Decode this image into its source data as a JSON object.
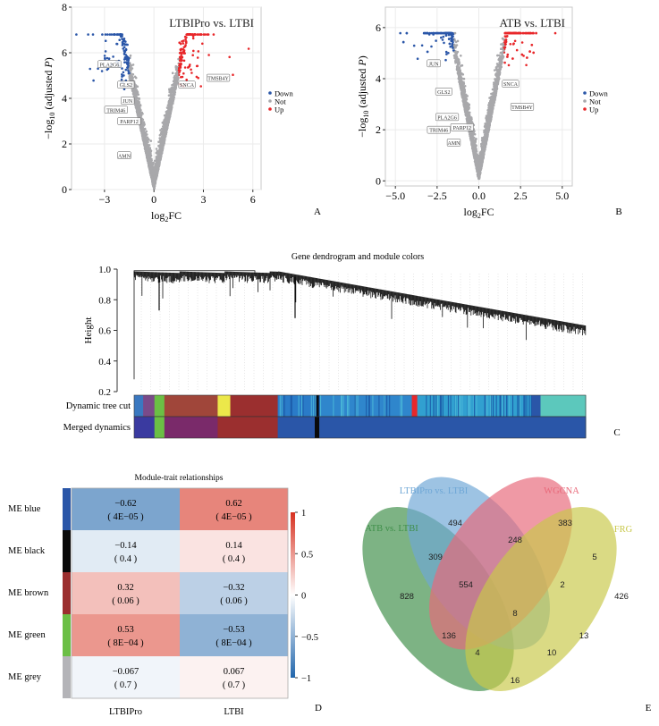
{
  "chart_data": [
    {
      "panel": "A",
      "type": "scatter",
      "title": "LTBIPro vs. LTBI",
      "xlabel": "log2FC",
      "ylabel": "-log10 (adjusted P)",
      "xlim": [
        -5,
        6.5
      ],
      "ylim": [
        0,
        8
      ],
      "xticks": [
        "-3",
        "0",
        "3",
        "6"
      ],
      "xtick_values": [
        -3,
        0,
        3,
        6
      ],
      "yticks": [
        "0",
        "2",
        "4",
        "6",
        "8"
      ],
      "ytick_values": [
        0,
        2,
        4,
        6,
        8
      ],
      "grid": true,
      "legend": {
        "position": "right",
        "entries": [
          {
            "name": "Down",
            "color": "#2a56a8"
          },
          {
            "name": "Not",
            "color": "#a8a8ab"
          },
          {
            "name": "Up",
            "color": "#e8272a"
          }
        ]
      },
      "fc_threshold": 1.5,
      "labels": [
        {
          "text": "PLA2G6",
          "x": -2.7,
          "y": 5.5
        },
        {
          "text": "GLS2",
          "x": -1.7,
          "y": 4.6
        },
        {
          "text": "JUN",
          "x": -1.6,
          "y": 3.9
        },
        {
          "text": "TRIM46",
          "x": -2.3,
          "y": 3.5
        },
        {
          "text": "PARP12",
          "x": -1.5,
          "y": 3.0
        },
        {
          "text": "AMN",
          "x": -1.8,
          "y": 1.5
        },
        {
          "text": "TMSB4Y",
          "x": 3.9,
          "y": 4.9
        },
        {
          "text": "SNCA",
          "x": 2.0,
          "y": 4.6
        }
      ],
      "points_description": "Volcano: thousands of genes; Down (log2FC < -1.5, blue), Not (grey, |log2FC| < 1.5), Up (log2FC > 1.5, red); max -log10 adjusted P about 7.0"
    },
    {
      "panel": "B",
      "type": "scatter",
      "title": "ATB vs. LTBI",
      "xlabel": "log2FC",
      "ylabel": "-log10 (adjusted P)",
      "xlim": [
        -5.6,
        5.6
      ],
      "ylim": [
        -0.2,
        6.8
      ],
      "xticks": [
        "-5.0",
        "-2.5",
        "0.0",
        "2.5",
        "5.0"
      ],
      "xtick_values": [
        -5,
        -2.5,
        0,
        2.5,
        5
      ],
      "yticks": [
        "0",
        "2",
        "4",
        "6"
      ],
      "ytick_values": [
        0,
        2,
        4,
        6
      ],
      "grid": true,
      "legend": {
        "position": "right",
        "entries": [
          {
            "name": "Down",
            "color": "#2a56a8"
          },
          {
            "name": "Not",
            "color": "#a8a8ab"
          },
          {
            "name": "Up",
            "color": "#e8272a"
          }
        ]
      },
      "fc_threshold": 1.5,
      "labels": [
        {
          "text": "JUN",
          "x": -2.7,
          "y": 4.6
        },
        {
          "text": "GLS2",
          "x": -2.1,
          "y": 3.5
        },
        {
          "text": "PLA2G6",
          "x": -1.9,
          "y": 2.5
        },
        {
          "text": "PARP12",
          "x": -1.0,
          "y": 2.1
        },
        {
          "text": "TRIM46",
          "x": -2.4,
          "y": 2.0
        },
        {
          "text": "AMN",
          "x": -1.5,
          "y": 1.5
        },
        {
          "text": "SNCA",
          "x": 1.9,
          "y": 3.8
        },
        {
          "text": "TMSB4Y",
          "x": 2.6,
          "y": 2.9
        }
      ],
      "points_description": "Volcano: Down (blue), Not (grey), Up (red); max -log10 adjusted P about 6.5"
    },
    {
      "panel": "C",
      "type": "dendrogram",
      "title": "Gene dendrogram and module colors",
      "ylabel": "Height",
      "ylim": [
        0.2,
        1.0
      ],
      "yticks": [
        "0.2",
        "0.4",
        "0.6",
        "0.8",
        "1.0"
      ],
      "ytick_values": [
        0.2,
        0.4,
        0.6,
        0.8,
        1.0
      ],
      "color_rows": [
        {
          "label": "Dynamic tree cut",
          "segments": [
            {
              "color": "#3a78c0",
              "from": 0.0,
              "to": 0.02
            },
            {
              "color": "#7a4a8a",
              "from": 0.02,
              "to": 0.045
            },
            {
              "color": "#6bbf45",
              "from": 0.045,
              "to": 0.067
            },
            {
              "color": "#a0463a",
              "from": 0.067,
              "to": 0.185
            },
            {
              "color": "#ece84a",
              "from": 0.185,
              "to": 0.213
            },
            {
              "color": "#9b2f2f",
              "from": 0.213,
              "to": 0.318
            },
            {
              "color": "#2a7bc8",
              "from": 0.318,
              "to": 0.4
            },
            {
              "color": "#0a0a0a",
              "from": 0.4,
              "to": 0.41
            },
            {
              "color": "#2f86cc",
              "from": 0.41,
              "to": 0.615
            },
            {
              "color": "#e8272a",
              "from": 0.615,
              "to": 0.627
            },
            {
              "color": "#31a0d0",
              "from": 0.627,
              "to": 0.88
            },
            {
              "color": "#2a56a8",
              "from": 0.88,
              "to": 0.9
            },
            {
              "color": "#5cc8bc",
              "from": 0.9,
              "to": 1.0
            }
          ]
        },
        {
          "label": "Merged dynamics",
          "segments": [
            {
              "color": "#3a3aa0",
              "from": 0.0,
              "to": 0.045
            },
            {
              "color": "#6bbf45",
              "from": 0.045,
              "to": 0.067
            },
            {
              "color": "#7a2a6a",
              "from": 0.067,
              "to": 0.185
            },
            {
              "color": "#9b2f2f",
              "from": 0.185,
              "to": 0.318
            },
            {
              "color": "#2a56a8",
              "from": 0.318,
              "to": 0.4
            },
            {
              "color": "#0a0a0a",
              "from": 0.4,
              "to": 0.41
            },
            {
              "color": "#2a56a8",
              "from": 0.41,
              "to": 1.0
            }
          ]
        }
      ]
    },
    {
      "panel": "D",
      "type": "heatmap",
      "title": "Module-trait relationships",
      "columns": [
        "LTBIPro",
        "LTBI"
      ],
      "rows": [
        {
          "label": "ME blue",
          "module_color": "#2a56a8",
          "values": [
            -0.62,
            0.62
          ],
          "cells": [
            {
              "r": "−0.62",
              "p": "( 4E−05 )"
            },
            {
              "r": "0.62",
              "p": "( 4E−05 )"
            }
          ]
        },
        {
          "label": "ME black",
          "module_color": "#0a0a0a",
          "values": [
            -0.14,
            0.14
          ],
          "cells": [
            {
              "r": "−0.14",
              "p": "( 0.4 )"
            },
            {
              "r": "0.14",
              "p": "( 0.4 )"
            }
          ]
        },
        {
          "label": "ME brown",
          "module_color": "#9b2f2f",
          "values": [
            0.32,
            -0.32
          ],
          "cells": [
            {
              "r": "0.32",
              "p": "( 0.06 )"
            },
            {
              "r": "−0.32",
              "p": "( 0.06 )"
            }
          ]
        },
        {
          "label": "ME green",
          "module_color": "#6bbf45",
          "values": [
            0.53,
            -0.53
          ],
          "cells": [
            {
              "r": "0.53",
              "p": "( 8E−04 )"
            },
            {
              "r": "−0.53",
              "p": "( 8E−04 )"
            }
          ]
        },
        {
          "label": "ME grey",
          "module_color": "#b4b4b8",
          "values": [
            -0.067,
            0.067
          ],
          "cells": [
            {
              "r": "−0.067",
              "p": "( 0.7 )"
            },
            {
              "r": "0.067",
              "p": "( 0.7 )"
            }
          ]
        }
      ],
      "colorbar": {
        "range": [
          -1,
          1
        ],
        "ticks": [
          "1",
          "0.5",
          "0",
          "−0.5",
          "−1"
        ],
        "tick_values": [
          1,
          0.5,
          0,
          -0.5,
          -1
        ],
        "low_color": "#2166ac",
        "mid_color": "#ffffff",
        "high_color": "#d7301f"
      }
    },
    {
      "panel": "E",
      "type": "venn",
      "sets": [
        {
          "name": "ATB vs. LTBI",
          "color": "#3f8f4a"
        },
        {
          "name": "LTBIPro vs. LTBI",
          "color": "#6fa7d6"
        },
        {
          "name": "WGCNA",
          "color": "#e8697a"
        },
        {
          "name": "FRG",
          "color": "#c8c84a"
        }
      ],
      "regions": [
        {
          "sets": [
            "LTBIPro vs. LTBI"
          ],
          "count": 494
        },
        {
          "sets": [
            "WGCNA"
          ],
          "count": 383
        },
        {
          "sets": [
            "LTBIPro vs. LTBI",
            "WGCNA"
          ],
          "count": 248
        },
        {
          "sets": [
            "ATB vs. LTBI",
            "LTBIPro vs. LTBI"
          ],
          "count": 309
        },
        {
          "sets": [
            "WGCNA",
            "FRG"
          ],
          "count": 5
        },
        {
          "sets": [
            "ATB vs. LTBI",
            "LTBIPro vs. LTBI",
            "WGCNA"
          ],
          "count": 554
        },
        {
          "sets": [
            "LTBIPro vs. LTBI",
            "WGCNA",
            "FRG"
          ],
          "count": 2
        },
        {
          "sets": [
            "ATB vs. LTBI"
          ],
          "count": 828
        },
        {
          "sets": [
            "FRG"
          ],
          "count": 426
        },
        {
          "sets": [
            "ATB vs. LTBI",
            "LTBIPro vs. LTBI",
            "WGCNA",
            "FRG"
          ],
          "count": 8
        },
        {
          "sets": [
            "ATB vs. LTBI",
            "WGCNA"
          ],
          "count": 136
        },
        {
          "sets": [
            "LTBIPro vs. LTBI",
            "FRG"
          ],
          "count": 13
        },
        {
          "sets": [
            "ATB vs. LTBI",
            "WGCNA",
            "FRG"
          ],
          "count": 4
        },
        {
          "sets": [
            "ATB vs. LTBI",
            "LTBIPro vs. LTBI",
            "FRG"
          ],
          "count": 10
        },
        {
          "sets": [
            "ATB vs. LTBI",
            "FRG"
          ],
          "count": 16
        }
      ]
    }
  ],
  "panel_letters": {
    "A": "A",
    "B": "B",
    "C": "C",
    "D": "D",
    "E": "E"
  },
  "axis_text": {
    "log2fc": "log",
    "log2fc_sub": "2",
    "log2fc_tail": "FC",
    "ylab_prefix": "−log",
    "ylab_sub": "10",
    "ylab_mid": " (adjusted ",
    "ylab_p": "P",
    "ylab_end": ")"
  }
}
